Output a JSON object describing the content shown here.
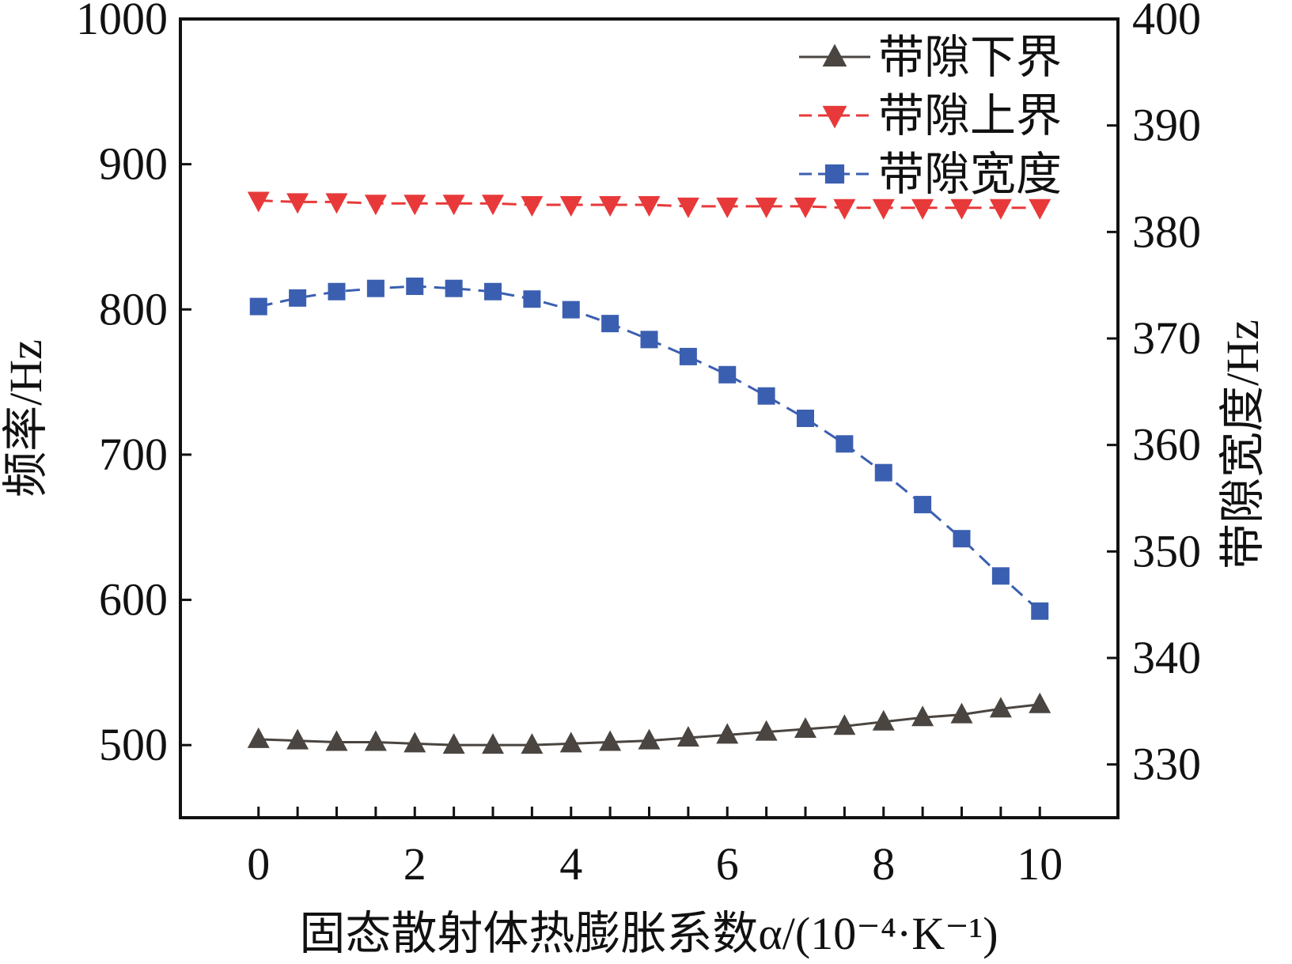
{
  "chart_data": {
    "type": "line",
    "xlabel": "固态散射体热膨胀系数α/(10⁻⁴·K⁻¹)",
    "ylabel": "频率/Hz",
    "ylabel_right": "带隙宽度/Hz",
    "xlim": [
      -1,
      11
    ],
    "ylim": [
      450,
      1000
    ],
    "ylim_right": [
      325,
      400
    ],
    "x_ticks": [
      "0",
      "2",
      "4",
      "6",
      "8",
      "10"
    ],
    "y_ticks": [
      "500",
      "600",
      "700",
      "800",
      "900",
      "1000"
    ],
    "y_ticks_right": [
      "330",
      "340",
      "350",
      "360",
      "370",
      "380",
      "390",
      "400"
    ],
    "grid": false,
    "legend_position": "top-right",
    "x": [
      0,
      0.5,
      1,
      1.5,
      2,
      2.5,
      3,
      3.5,
      4,
      4.5,
      5,
      5.5,
      6,
      6.5,
      7,
      7.5,
      8,
      8.5,
      9,
      9.5,
      10
    ],
    "series": [
      {
        "name": "带隙下界",
        "axis": "left",
        "color": "#4a4540",
        "marker": "triangle-up",
        "dash": "solid",
        "values": [
          504,
          503,
          502,
          502,
          501,
          500,
          500,
          500,
          501,
          502,
          503,
          505,
          507,
          509,
          511,
          513,
          516,
          519,
          521,
          525,
          528
        ]
      },
      {
        "name": "带隙上界",
        "axis": "left",
        "color": "#e8393a",
        "marker": "triangle-down",
        "dash": "dashed",
        "values": [
          875,
          874,
          874,
          873,
          873,
          873,
          873,
          872,
          872,
          872,
          872,
          871,
          871,
          871,
          871,
          870,
          870,
          870,
          870,
          870,
          870
        ]
      },
      {
        "name": "带隙宽度",
        "axis": "right",
        "color": "#3b5fb0",
        "marker": "square",
        "dash": "dashed",
        "values": [
          373.0,
          373.8,
          374.4,
          374.7,
          374.9,
          374.7,
          374.4,
          373.7,
          372.7,
          371.4,
          369.9,
          368.3,
          366.6,
          364.6,
          362.5,
          360.1,
          357.4,
          354.4,
          351.2,
          347.7,
          344.4
        ]
      }
    ]
  }
}
